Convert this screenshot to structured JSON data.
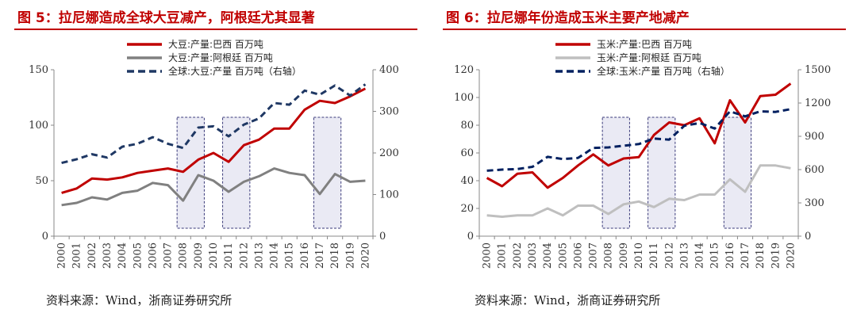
{
  "chart_data": [
    {
      "type": "line",
      "figure_label": "图 5：",
      "title": "拉尼娜造成全球大豆减产，阿根廷尤其显著",
      "x": [
        "2000",
        "2001",
        "2002",
        "2003",
        "2004",
        "2005",
        "2006",
        "2007",
        "2008",
        "2009",
        "2010",
        "2011",
        "2012",
        "2013",
        "2014",
        "2015",
        "2016",
        "2017",
        "2018",
        "2019",
        "2020"
      ],
      "ylim_left": [
        0,
        150
      ],
      "yticks_left": [
        0,
        50,
        100,
        150
      ],
      "ylim_right": [
        0,
        400
      ],
      "yticks_right": [
        0,
        100,
        200,
        300,
        400
      ],
      "series": [
        {
          "name": "大豆:产量:巴西 百万吨",
          "axis": "left",
          "color": "#c00000",
          "style": "solid",
          "values": [
            39,
            43,
            52,
            51,
            53,
            57,
            59,
            61,
            58,
            69,
            75,
            67,
            82,
            87,
            97,
            97,
            114,
            122,
            120,
            126,
            133
          ]
        },
        {
          "name": "大豆:产量:阿根廷 百万吨",
          "axis": "left",
          "color": "#808080",
          "style": "solid",
          "values": [
            28,
            30,
            35,
            33,
            39,
            41,
            48,
            46,
            32,
            55,
            50,
            40,
            49,
            54,
            61,
            57,
            55,
            38,
            56,
            49,
            50
          ]
        },
        {
          "name": "全球:大豆:产量 百万吨（右轴）",
          "axis": "right",
          "color": "#1f3864",
          "style": "dashed",
          "values": [
            176,
            185,
            197,
            189,
            215,
            222,
            238,
            222,
            212,
            261,
            264,
            240,
            268,
            283,
            320,
            316,
            350,
            340,
            362,
            338,
            365
          ]
        }
      ],
      "shaded_years": [
        [
          "2008",
          "2009"
        ],
        [
          "2011",
          "2012"
        ],
        [
          "2017",
          "2018"
        ]
      ]
    },
    {
      "type": "line",
      "figure_label": "图 6：",
      "title": "拉尼娜年份造成玉米主要产地减产",
      "x": [
        "2000",
        "2001",
        "2002",
        "2003",
        "2004",
        "2005",
        "2006",
        "2007",
        "2008",
        "2009",
        "2010",
        "2011",
        "2012",
        "2013",
        "2014",
        "2015",
        "2016",
        "2017",
        "2018",
        "2019",
        "2020"
      ],
      "ylim_left": [
        0,
        120
      ],
      "yticks_left": [
        0,
        20,
        40,
        60,
        80,
        100,
        120
      ],
      "ylim_right": [
        0,
        1500
      ],
      "yticks_right": [
        0,
        300,
        600,
        900,
        1200,
        1500
      ],
      "series": [
        {
          "name": "玉米:产量:巴西 百万吨",
          "axis": "left",
          "color": "#c00000",
          "style": "solid",
          "values": [
            42,
            36,
            45,
            46,
            35,
            42,
            51,
            59,
            51,
            56,
            57,
            73,
            82,
            80,
            85,
            67,
            98,
            82,
            101,
            102,
            110
          ]
        },
        {
          "name": "玉米:产量:阿根廷 百万吨",
          "axis": "left",
          "color": "#bfbfbf",
          "style": "solid",
          "values": [
            15,
            14,
            15,
            15,
            20,
            15,
            22,
            22,
            16,
            23,
            25,
            21,
            27,
            26,
            30,
            30,
            41,
            32,
            51,
            51,
            49
          ]
        },
        {
          "name": "全球:玉米:产量 百万吨（右轴）",
          "axis": "right",
          "color": "#002060",
          "style": "dashed",
          "values": [
            590,
            600,
            605,
            625,
            715,
            695,
            705,
            795,
            800,
            815,
            830,
            880,
            870,
            995,
            1020,
            970,
            1125,
            1080,
            1125,
            1120,
            1145
          ]
        }
      ],
      "shaded_years": [
        [
          "2008",
          "2009"
        ],
        [
          "2011",
          "2012"
        ],
        [
          "2016",
          "2017"
        ]
      ]
    }
  ],
  "footer": {
    "source_left": "资料来源：Wind，浙商证券研究所",
    "source_right": "资料来源：Wind，浙商证券研究所"
  }
}
